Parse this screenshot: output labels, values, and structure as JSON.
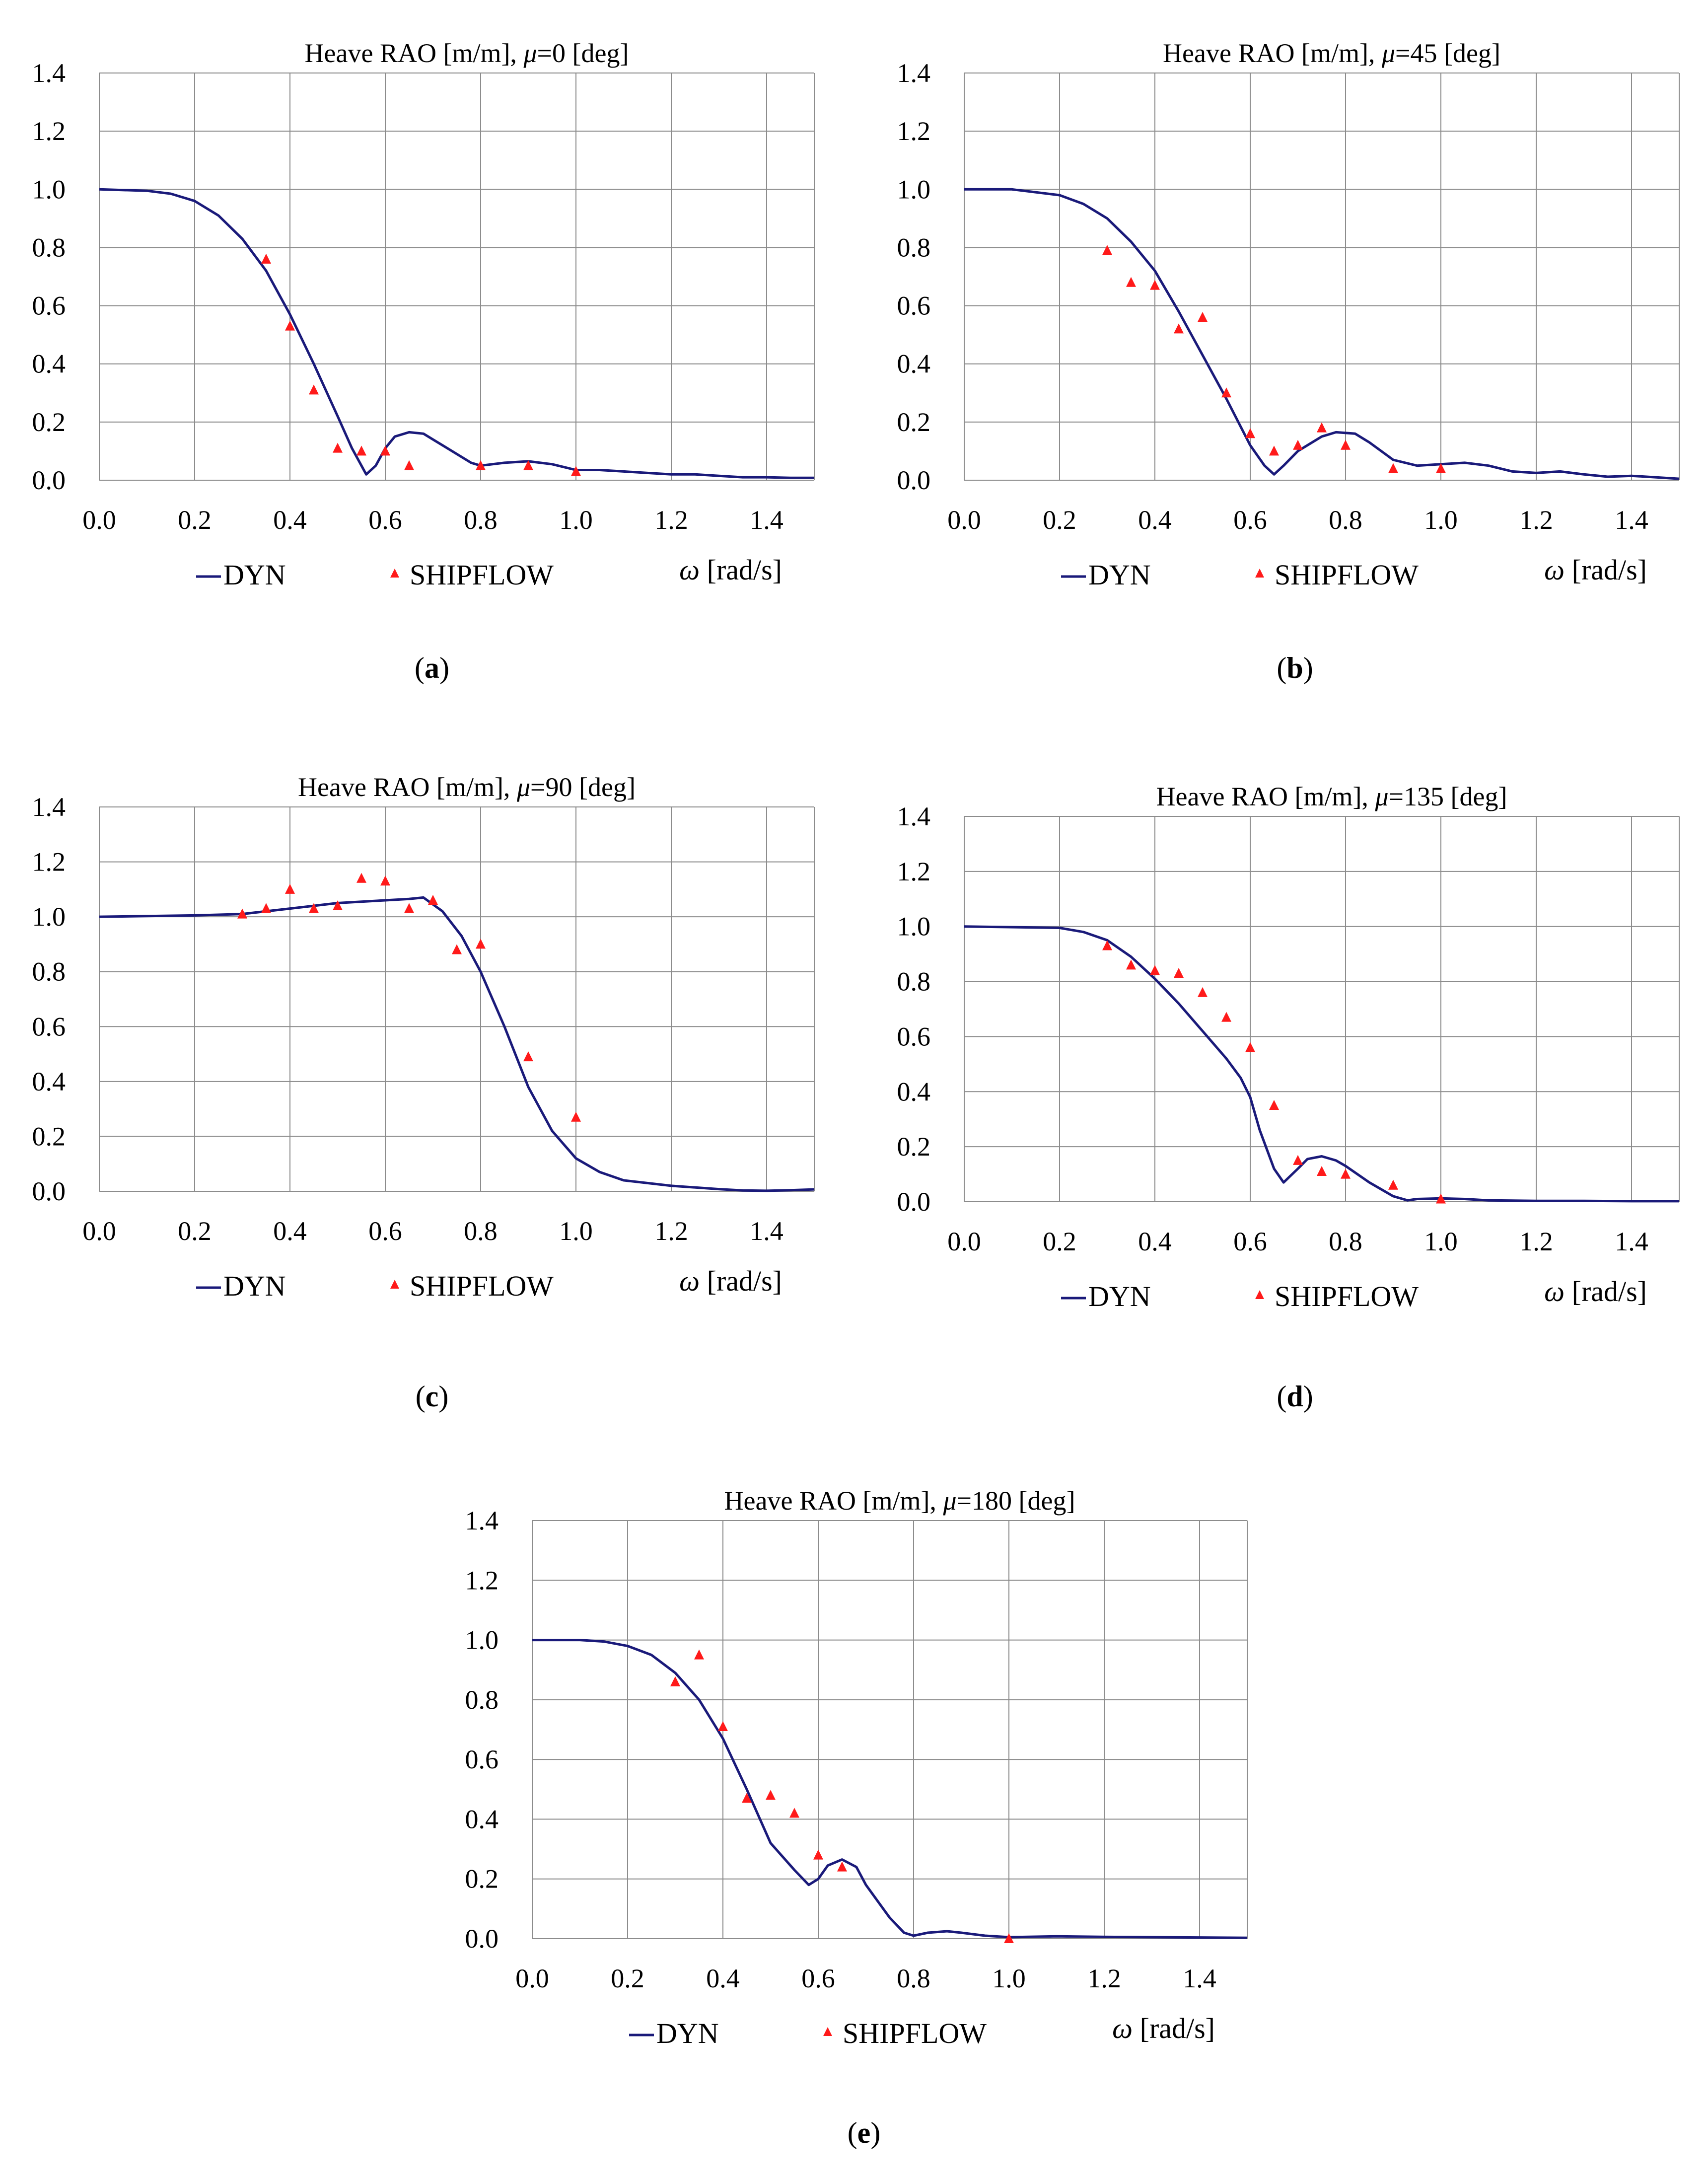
{
  "figure": {
    "panels": [
      {
        "id": "a",
        "caption_letter": "a",
        "title_prefix": "Heave RAO [m/m], ",
        "title_mu": "μ",
        "title_suffix": "=0 [deg]"
      },
      {
        "id": "b",
        "caption_letter": "b",
        "title_prefix": "Heave RAO [m/m], ",
        "title_mu": "μ",
        "title_suffix": "=45 [deg]"
      },
      {
        "id": "c",
        "caption_letter": "c",
        "title_prefix": "Heave RAO [m/m], ",
        "title_mu": "μ",
        "title_suffix": "=90 [deg]"
      },
      {
        "id": "d",
        "caption_letter": "d",
        "title_prefix": "Heave RAO [m/m], ",
        "title_mu": "μ",
        "title_suffix": "=135 [deg]"
      },
      {
        "id": "e",
        "caption_letter": "e",
        "title_prefix": "Heave RAO [m/m], ",
        "title_mu": "μ",
        "title_suffix": "=180 [deg]"
      }
    ]
  },
  "colors": {
    "dyn": "#1a1a7a",
    "shipflow": "#ff1a1a",
    "grid": "#8c8c8c"
  },
  "chart_data": [
    {
      "type": "line",
      "title": "Heave RAO [m/m], μ=0 [deg]",
      "xlabel": "ω [rad/s]",
      "ylabel": "",
      "xlim": [
        0,
        1.5
      ],
      "ylim": [
        0,
        1.4
      ],
      "xticks": [
        "0.0",
        "0.2",
        "0.4",
        "0.6",
        "0.8",
        "1.0",
        "1.2",
        "1.4"
      ],
      "yticks": [
        "0.0",
        "0.2",
        "0.4",
        "0.6",
        "0.8",
        "1.0",
        "1.2",
        "1.4"
      ],
      "legend": [
        "DYN",
        "SHIPFLOW"
      ],
      "series": [
        {
          "name": "DYN",
          "kind": "line",
          "x": [
            0,
            0.1,
            0.15,
            0.2,
            0.25,
            0.3,
            0.35,
            0.4,
            0.45,
            0.5,
            0.53,
            0.56,
            0.58,
            0.6,
            0.62,
            0.65,
            0.68,
            0.7,
            0.74,
            0.78,
            0.8,
            0.85,
            0.9,
            0.95,
            1.0,
            1.05,
            1.1,
            1.15,
            1.2,
            1.25,
            1.3,
            1.35,
            1.4,
            1.45,
            1.5
          ],
          "y": [
            1.0,
            0.995,
            0.985,
            0.96,
            0.91,
            0.83,
            0.72,
            0.57,
            0.4,
            0.22,
            0.11,
            0.02,
            0.05,
            0.11,
            0.15,
            0.165,
            0.16,
            0.14,
            0.1,
            0.06,
            0.05,
            0.06,
            0.065,
            0.055,
            0.035,
            0.035,
            0.03,
            0.025,
            0.02,
            0.02,
            0.015,
            0.01,
            0.01,
            0.008,
            0.008
          ]
        },
        {
          "name": "SHIPFLOW",
          "kind": "scatter",
          "x": [
            0.35,
            0.4,
            0.45,
            0.5,
            0.55,
            0.6,
            0.65,
            0.8,
            0.9,
            1.0
          ],
          "y": [
            0.76,
            0.53,
            0.31,
            0.11,
            0.1,
            0.1,
            0.05,
            0.05,
            0.05,
            0.03
          ]
        }
      ]
    },
    {
      "type": "line",
      "title": "Heave RAO [m/m], μ=45 [deg]",
      "xlabel": "ω [rad/s]",
      "ylabel": "",
      "xlim": [
        0,
        1.5
      ],
      "ylim": [
        0,
        1.4
      ],
      "xticks": [
        "0.0",
        "0.2",
        "0.4",
        "0.6",
        "0.8",
        "1.0",
        "1.2",
        "1.4"
      ],
      "yticks": [
        "0.0",
        "0.2",
        "0.4",
        "0.6",
        "0.8",
        "1.0",
        "1.2",
        "1.4"
      ],
      "legend": [
        "DYN",
        "SHIPFLOW"
      ],
      "series": [
        {
          "name": "DYN",
          "kind": "line",
          "x": [
            0,
            0.1,
            0.2,
            0.25,
            0.3,
            0.35,
            0.4,
            0.45,
            0.5,
            0.55,
            0.6,
            0.63,
            0.65,
            0.67,
            0.7,
            0.75,
            0.78,
            0.82,
            0.85,
            0.9,
            0.95,
            1.0,
            1.05,
            1.1,
            1.15,
            1.2,
            1.25,
            1.3,
            1.35,
            1.4,
            1.45,
            1.5
          ],
          "y": [
            1.0,
            1.0,
            0.98,
            0.95,
            0.9,
            0.82,
            0.72,
            0.58,
            0.43,
            0.28,
            0.12,
            0.05,
            0.02,
            0.05,
            0.1,
            0.15,
            0.165,
            0.16,
            0.13,
            0.07,
            0.05,
            0.055,
            0.06,
            0.05,
            0.03,
            0.025,
            0.03,
            0.02,
            0.012,
            0.015,
            0.01,
            0.005
          ]
        },
        {
          "name": "SHIPFLOW",
          "kind": "scatter",
          "x": [
            0.3,
            0.35,
            0.4,
            0.45,
            0.5,
            0.55,
            0.6,
            0.65,
            0.7,
            0.75,
            0.8,
            0.9,
            1.0
          ],
          "y": [
            0.79,
            0.68,
            0.67,
            0.52,
            0.56,
            0.3,
            0.16,
            0.1,
            0.12,
            0.18,
            0.12,
            0.04,
            0.04
          ]
        }
      ]
    },
    {
      "type": "line",
      "title": "Heave RAO [m/m], μ=90 [deg]",
      "xlabel": "ω [rad/s]",
      "ylabel": "",
      "xlim": [
        0,
        1.5
      ],
      "ylim": [
        0,
        1.4
      ],
      "xticks": [
        "0.0",
        "0.2",
        "0.4",
        "0.6",
        "0.8",
        "1.0",
        "1.2",
        "1.4"
      ],
      "yticks": [
        "0.0",
        "0.2",
        "0.4",
        "0.6",
        "0.8",
        "1.0",
        "1.2",
        "1.4"
      ],
      "legend": [
        "DYN",
        "SHIPFLOW"
      ],
      "series": [
        {
          "name": "DYN",
          "kind": "line",
          "x": [
            0,
            0.2,
            0.3,
            0.4,
            0.5,
            0.6,
            0.65,
            0.68,
            0.72,
            0.76,
            0.8,
            0.85,
            0.9,
            0.95,
            1.0,
            1.05,
            1.1,
            1.2,
            1.3,
            1.35,
            1.4,
            1.45,
            1.5
          ],
          "y": [
            1.0,
            1.005,
            1.01,
            1.03,
            1.05,
            1.06,
            1.065,
            1.07,
            1.02,
            0.93,
            0.8,
            0.6,
            0.38,
            0.22,
            0.12,
            0.07,
            0.04,
            0.02,
            0.008,
            0.003,
            0.002,
            0.004,
            0.007
          ]
        },
        {
          "name": "SHIPFLOW",
          "kind": "scatter",
          "x": [
            0.3,
            0.35,
            0.4,
            0.45,
            0.5,
            0.55,
            0.6,
            0.65,
            0.7,
            0.75,
            0.8,
            0.9,
            1.0
          ],
          "y": [
            1.01,
            1.03,
            1.1,
            1.03,
            1.04,
            1.14,
            1.13,
            1.03,
            1.06,
            0.88,
            0.9,
            0.49,
            0.27
          ]
        }
      ]
    },
    {
      "type": "line",
      "title": "Heave RAO [m/m], μ=135 [deg]",
      "xlabel": "ω [rad/s]",
      "ylabel": "",
      "xlim": [
        0,
        1.5
      ],
      "ylim": [
        0,
        1.4
      ],
      "xticks": [
        "0.0",
        "0.2",
        "0.4",
        "0.6",
        "0.8",
        "1.0",
        "1.2",
        "1.4"
      ],
      "yticks": [
        "0.0",
        "0.2",
        "0.4",
        "0.6",
        "0.8",
        "1.0",
        "1.2",
        "1.4"
      ],
      "legend": [
        "DYN",
        "SHIPFLOW"
      ],
      "series": [
        {
          "name": "DYN",
          "kind": "line",
          "x": [
            0,
            0.2,
            0.25,
            0.3,
            0.35,
            0.4,
            0.45,
            0.5,
            0.55,
            0.58,
            0.6,
            0.62,
            0.65,
            0.67,
            0.7,
            0.72,
            0.75,
            0.78,
            0.8,
            0.85,
            0.9,
            0.93,
            0.95,
            1.0,
            1.05,
            1.1,
            1.2,
            1.3,
            1.4,
            1.5
          ],
          "y": [
            1.0,
            0.995,
            0.98,
            0.95,
            0.89,
            0.81,
            0.72,
            0.62,
            0.52,
            0.45,
            0.38,
            0.26,
            0.12,
            0.07,
            0.12,
            0.155,
            0.165,
            0.15,
            0.13,
            0.07,
            0.02,
            0.005,
            0.01,
            0.012,
            0.01,
            0.005,
            0.003,
            0.003,
            0.002,
            0.002
          ]
        },
        {
          "name": "SHIPFLOW",
          "kind": "scatter",
          "x": [
            0.3,
            0.35,
            0.4,
            0.45,
            0.5,
            0.55,
            0.6,
            0.65,
            0.7,
            0.75,
            0.8,
            0.9,
            1.0
          ],
          "y": [
            0.93,
            0.86,
            0.84,
            0.83,
            0.76,
            0.67,
            0.56,
            0.35,
            0.15,
            0.11,
            0.1,
            0.06,
            0.01
          ]
        }
      ]
    },
    {
      "type": "line",
      "title": "Heave RAO [m/m], μ=180 [deg]",
      "xlabel": "ω [rad/s]",
      "ylabel": "",
      "xlim": [
        0,
        1.5
      ],
      "ylim": [
        0,
        1.4
      ],
      "xticks": [
        "0.0",
        "0.2",
        "0.4",
        "0.6",
        "0.8",
        "1.0",
        "1.2",
        "1.4"
      ],
      "yticks": [
        "0.0",
        "0.2",
        "0.4",
        "0.6",
        "0.8",
        "1.0",
        "1.2",
        "1.4"
      ],
      "legend": [
        "DYN",
        "SHIPFLOW"
      ],
      "series": [
        {
          "name": "DYN",
          "kind": "line",
          "x": [
            0,
            0.1,
            0.15,
            0.2,
            0.25,
            0.3,
            0.35,
            0.4,
            0.45,
            0.5,
            0.55,
            0.58,
            0.6,
            0.62,
            0.65,
            0.68,
            0.7,
            0.75,
            0.78,
            0.8,
            0.83,
            0.87,
            0.9,
            0.95,
            1.0,
            1.1,
            1.2,
            1.3,
            1.4,
            1.5
          ],
          "y": [
            1.0,
            1.0,
            0.995,
            0.98,
            0.95,
            0.89,
            0.8,
            0.67,
            0.5,
            0.32,
            0.23,
            0.18,
            0.2,
            0.245,
            0.265,
            0.24,
            0.18,
            0.07,
            0.02,
            0.01,
            0.02,
            0.025,
            0.02,
            0.01,
            0.005,
            0.008,
            0.006,
            0.005,
            0.004,
            0.003
          ]
        },
        {
          "name": "SHIPFLOW",
          "kind": "scatter",
          "x": [
            0.3,
            0.35,
            0.4,
            0.45,
            0.5,
            0.55,
            0.6,
            0.65,
            1.0
          ],
          "y": [
            0.86,
            0.95,
            0.71,
            0.47,
            0.48,
            0.42,
            0.28,
            0.24,
            0.0
          ]
        }
      ]
    }
  ]
}
